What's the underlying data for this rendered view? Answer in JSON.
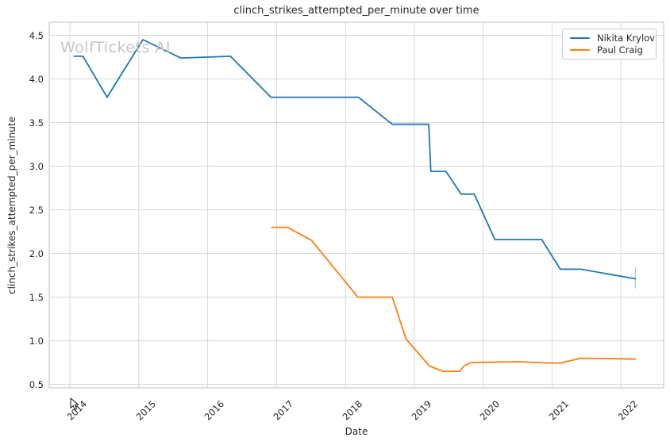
{
  "title": "clinch_strikes_attempted_per_minute over time",
  "watermark": "WolfTickets AI",
  "axes": {
    "x_label": "Date",
    "y_label": "clinch_strikes_attempted_per_minute"
  },
  "legend": {
    "position": "upper right",
    "items": [
      {
        "label": "Nikita Krylov",
        "color": "#1f77b4"
      },
      {
        "label": "Paul Craig",
        "color": "#ff7f0e"
      }
    ]
  },
  "colors": {
    "grid": "#d7d7d7",
    "spine": "#cbcbcb",
    "background": "#ffffff",
    "text": "#262626",
    "watermark": "#c6c6c6"
  },
  "chart_data": {
    "type": "line",
    "title": "clinch_strikes_attempted_per_minute over time",
    "xlabel": "Date",
    "ylabel": "clinch_strikes_attempted_per_minute",
    "xlim": [
      2013.7,
      2022.62
    ],
    "ylim": [
      0.46,
      4.65
    ],
    "grid": true,
    "legend_position": "upper right",
    "x_ticks": [
      2014,
      2015,
      2016,
      2017,
      2018,
      2019,
      2020,
      2021,
      2022
    ],
    "x_tick_labels": [
      "2014",
      "2015",
      "2016",
      "2017",
      "2018",
      "2019",
      "2020",
      "2021",
      "2022"
    ],
    "y_ticks": [
      0.5,
      1.0,
      1.5,
      2.0,
      2.5,
      3.0,
      3.5,
      4.0,
      4.5
    ],
    "y_tick_labels": [
      "0.5",
      "1.0",
      "1.5",
      "2.0",
      "2.5",
      "3.0",
      "3.5",
      "4.0",
      "4.5"
    ],
    "series": [
      {
        "name": "Nikita Krylov",
        "color": "#1f77b4",
        "x": [
          2014.06,
          2014.19,
          2014.54,
          2015.06,
          2015.61,
          2016.0,
          2016.33,
          2016.92,
          2018.19,
          2018.68,
          2019.21,
          2019.24,
          2019.46,
          2019.68,
          2019.87,
          2020.17,
          2020.85,
          2021.12,
          2021.42,
          2022.21
        ],
        "y": [
          4.26,
          4.26,
          3.79,
          4.45,
          4.24,
          4.25,
          4.26,
          3.79,
          3.79,
          3.48,
          3.48,
          2.94,
          2.94,
          2.68,
          2.68,
          2.16,
          2.16,
          1.82,
          1.82,
          1.71
        ]
      },
      {
        "name": "Paul Craig",
        "color": "#ff7f0e",
        "x": [
          2016.93,
          2017.16,
          2017.51,
          2018.18,
          2018.68,
          2018.88,
          2019.22,
          2019.42,
          2019.66,
          2019.72,
          2019.82,
          2020.53,
          2020.92,
          2021.12,
          2021.42,
          2022.21
        ],
        "y": [
          2.3,
          2.3,
          2.15,
          1.5,
          1.5,
          1.02,
          0.71,
          0.65,
          0.65,
          0.71,
          0.75,
          0.76,
          0.745,
          0.745,
          0.8,
          0.79
        ]
      }
    ],
    "error_bar": {
      "series": "Nikita Krylov",
      "x": 2022.21,
      "y_low": 1.6,
      "y_high": 1.84,
      "color": "#a9cbe5"
    }
  }
}
